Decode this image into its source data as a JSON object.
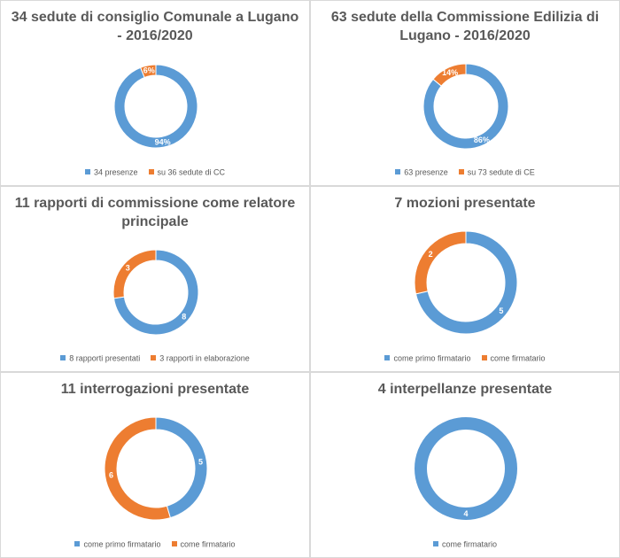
{
  "colors": {
    "blue": "#5b9bd5",
    "orange": "#ed7d31"
  },
  "chart_data": [
    {
      "type": "pie",
      "title": "34 sedute di consiglio Comunale a Lugano - 2016/2020",
      "categories": [
        "34 presenze",
        "su 36 sedute di CC"
      ],
      "values": [
        94,
        6
      ],
      "data_labels": [
        "94%",
        "6%"
      ],
      "colors": [
        "#5b9bd5",
        "#ed7d31"
      ],
      "legend": "bottom"
    },
    {
      "type": "pie",
      "title": "63 sedute della Commissione Edilizia di Lugano - 2016/2020",
      "categories": [
        "63 presenze",
        "su 73 sedute di CE"
      ],
      "values": [
        86,
        14
      ],
      "data_labels": [
        "86%",
        "14%"
      ],
      "colors": [
        "#5b9bd5",
        "#ed7d31"
      ],
      "legend": "bottom"
    },
    {
      "type": "pie",
      "title": "11 rapporti di commissione come relatore principale",
      "categories": [
        "8 rapporti presentati",
        "3 rapporti in elaborazione"
      ],
      "values": [
        8,
        3
      ],
      "data_labels": [
        "8",
        "3"
      ],
      "colors": [
        "#5b9bd5",
        "#ed7d31"
      ],
      "legend": "bottom"
    },
    {
      "type": "pie",
      "title": "7 mozioni presentate",
      "categories": [
        "come primo firmatario",
        "come firmatario"
      ],
      "values": [
        5,
        2
      ],
      "data_labels": [
        "5",
        "2"
      ],
      "colors": [
        "#5b9bd5",
        "#ed7d31"
      ],
      "legend": "bottom"
    },
    {
      "type": "pie",
      "title": "11 interrogazioni presentate",
      "categories": [
        "come primo firmatario",
        "come firmatario"
      ],
      "values": [
        5,
        6
      ],
      "data_labels": [
        "5",
        "6"
      ],
      "colors": [
        "#5b9bd5",
        "#ed7d31"
      ],
      "legend": "bottom"
    },
    {
      "type": "pie",
      "title": "4 interpellanze presentate",
      "categories": [
        "come  firmatario"
      ],
      "values": [
        4
      ],
      "data_labels": [
        "4"
      ],
      "colors": [
        "#5b9bd5"
      ],
      "legend": "bottom"
    }
  ]
}
